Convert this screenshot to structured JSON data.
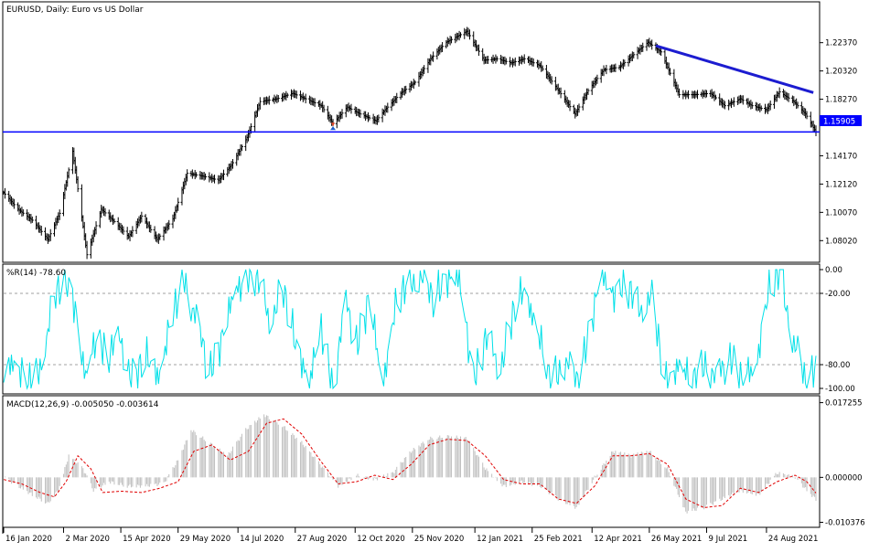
{
  "chart_data": [
    {
      "id": "price",
      "type": "ohlc",
      "title": "EURUSD, Daily:  Euro vs US Dollar",
      "y_ticks": [
        "1.22370",
        "1.20320",
        "1.18270",
        "1.14170",
        "1.12120",
        "1.10070",
        "1.08020"
      ],
      "ylim": [
        1.0645,
        1.2533
      ],
      "current_price": "1.15905",
      "horizontal_line_price": 1.159,
      "trendline": {
        "start": {
          "date": "2021-05-31",
          "price": 1.2215
        },
        "end": {
          "date": "2021-09-29",
          "price": 1.1875
        }
      },
      "series_close": [
        {
          "date": "2020-01-16",
          "close": 1.115
        },
        {
          "date": "2020-01-27",
          "close": 1.103
        },
        {
          "date": "2020-02-07",
          "close": 1.095
        },
        {
          "date": "2020-02-19",
          "close": 1.081
        },
        {
          "date": "2020-02-28",
          "close": 1.1
        },
        {
          "date": "2020-03-09",
          "close": 1.145
        },
        {
          "date": "2020-03-20",
          "close": 1.07
        },
        {
          "date": "2020-03-31",
          "close": 1.103
        },
        {
          "date": "2020-04-10",
          "close": 1.094
        },
        {
          "date": "2020-04-21",
          "close": 1.083
        },
        {
          "date": "2020-05-01",
          "close": 1.098
        },
        {
          "date": "2020-05-13",
          "close": 1.081
        },
        {
          "date": "2020-05-25",
          "close": 1.096
        },
        {
          "date": "2020-06-05",
          "close": 1.129
        },
        {
          "date": "2020-06-17",
          "close": 1.127
        },
        {
          "date": "2020-06-29",
          "close": 1.124
        },
        {
          "date": "2020-07-09",
          "close": 1.135
        },
        {
          "date": "2020-07-21",
          "close": 1.155
        },
        {
          "date": "2020-07-31",
          "close": 1.181
        },
        {
          "date": "2020-08-13",
          "close": 1.183
        },
        {
          "date": "2020-08-25",
          "close": 1.187
        },
        {
          "date": "2020-09-04",
          "close": 1.183
        },
        {
          "date": "2020-09-16",
          "close": 1.178
        },
        {
          "date": "2020-09-25",
          "close": 1.165
        },
        {
          "date": "2020-10-06",
          "close": 1.177
        },
        {
          "date": "2020-10-16",
          "close": 1.172
        },
        {
          "date": "2020-10-28",
          "close": 1.167
        },
        {
          "date": "2020-11-04",
          "close": 1.175
        },
        {
          "date": "2020-11-16",
          "close": 1.187
        },
        {
          "date": "2020-11-27",
          "close": 1.195
        },
        {
          "date": "2020-12-09",
          "close": 1.212
        },
        {
          "date": "2020-12-21",
          "close": 1.224
        },
        {
          "date": "2021-01-06",
          "close": 1.232
        },
        {
          "date": "2021-01-19",
          "close": 1.211
        },
        {
          "date": "2021-01-29",
          "close": 1.212
        },
        {
          "date": "2021-02-09",
          "close": 1.209
        },
        {
          "date": "2021-02-19",
          "close": 1.212
        },
        {
          "date": "2021-03-03",
          "close": 1.207
        },
        {
          "date": "2021-03-15",
          "close": 1.192
        },
        {
          "date": "2021-03-30",
          "close": 1.172
        },
        {
          "date": "2021-04-09",
          "close": 1.189
        },
        {
          "date": "2021-04-21",
          "close": 1.204
        },
        {
          "date": "2021-05-03",
          "close": 1.206
        },
        {
          "date": "2021-05-14",
          "close": 1.215
        },
        {
          "date": "2021-05-25",
          "close": 1.224
        },
        {
          "date": "2021-06-04",
          "close": 1.217
        },
        {
          "date": "2021-06-18",
          "close": 1.186
        },
        {
          "date": "2021-06-30",
          "close": 1.186
        },
        {
          "date": "2021-07-12",
          "close": 1.187
        },
        {
          "date": "2021-07-23",
          "close": 1.178
        },
        {
          "date": "2021-08-04",
          "close": 1.183
        },
        {
          "date": "2021-08-13",
          "close": 1.178
        },
        {
          "date": "2021-08-24",
          "close": 1.175
        },
        {
          "date": "2021-09-03",
          "close": 1.188
        },
        {
          "date": "2021-09-14",
          "close": 1.181
        },
        {
          "date": "2021-09-23",
          "close": 1.172
        },
        {
          "date": "2021-10-01",
          "close": 1.159
        }
      ]
    },
    {
      "id": "williams",
      "type": "line",
      "label": "%R(14) -78.60",
      "y_ticks": [
        "0.00",
        "-20.00",
        "-80.00",
        "-100.00"
      ],
      "ylim": [
        -100,
        0
      ],
      "levels": [
        -20,
        -80
      ],
      "color": "#00e0e8",
      "series": [
        {
          "date": "2020-01-16",
          "value": -95
        },
        {
          "date": "2020-01-24",
          "value": -72
        },
        {
          "date": "2020-02-03",
          "value": -98
        },
        {
          "date": "2020-02-11",
          "value": -90
        },
        {
          "date": "2020-02-21",
          "value": -40
        },
        {
          "date": "2020-03-02",
          "value": -2
        },
        {
          "date": "2020-03-11",
          "value": -30
        },
        {
          "date": "2020-03-19",
          "value": -95
        },
        {
          "date": "2020-03-27",
          "value": -55
        },
        {
          "date": "2020-04-06",
          "value": -70
        },
        {
          "date": "2020-04-15",
          "value": -60
        },
        {
          "date": "2020-04-24",
          "value": -92
        },
        {
          "date": "2020-05-05",
          "value": -75
        },
        {
          "date": "2020-05-14",
          "value": -88
        },
        {
          "date": "2020-05-25",
          "value": -40
        },
        {
          "date": "2020-06-03",
          "value": -5
        },
        {
          "date": "2020-06-12",
          "value": -45
        },
        {
          "date": "2020-06-22",
          "value": -85
        },
        {
          "date": "2020-07-01",
          "value": -60
        },
        {
          "date": "2020-07-10",
          "value": -25
        },
        {
          "date": "2020-07-20",
          "value": -3
        },
        {
          "date": "2020-07-29",
          "value": -8
        },
        {
          "date": "2020-08-07",
          "value": -40
        },
        {
          "date": "2020-08-18",
          "value": -20
        },
        {
          "date": "2020-08-27",
          "value": -60
        },
        {
          "date": "2020-09-07",
          "value": -95
        },
        {
          "date": "2020-09-16",
          "value": -50
        },
        {
          "date": "2020-09-25",
          "value": -98
        },
        {
          "date": "2020-10-05",
          "value": -30
        },
        {
          "date": "2020-10-14",
          "value": -60
        },
        {
          "date": "2020-10-23",
          "value": -25
        },
        {
          "date": "2020-11-02",
          "value": -98
        },
        {
          "date": "2020-11-11",
          "value": -35
        },
        {
          "date": "2020-11-20",
          "value": -15
        },
        {
          "date": "2020-12-01",
          "value": -3
        },
        {
          "date": "2020-12-10",
          "value": -25
        },
        {
          "date": "2020-12-21",
          "value": -6
        },
        {
          "date": "2020-12-31",
          "value": -10
        },
        {
          "date": "2021-01-11",
          "value": -90
        },
        {
          "date": "2021-01-20",
          "value": -60
        },
        {
          "date": "2021-02-01",
          "value": -80
        },
        {
          "date": "2021-02-10",
          "value": -40
        },
        {
          "date": "2021-02-19",
          "value": -15
        },
        {
          "date": "2021-03-02",
          "value": -55
        },
        {
          "date": "2021-03-11",
          "value": -98
        },
        {
          "date": "2021-03-22",
          "value": -75
        },
        {
          "date": "2021-03-31",
          "value": -96
        },
        {
          "date": "2021-04-09",
          "value": -55
        },
        {
          "date": "2021-04-19",
          "value": -5
        },
        {
          "date": "2021-04-28",
          "value": -20
        },
        {
          "date": "2021-05-07",
          "value": -10
        },
        {
          "date": "2021-05-18",
          "value": -35
        },
        {
          "date": "2021-05-27",
          "value": -20
        },
        {
          "date": "2021-06-07",
          "value": -95
        },
        {
          "date": "2021-06-17",
          "value": -80
        },
        {
          "date": "2021-06-28",
          "value": -95
        },
        {
          "date": "2021-07-07",
          "value": -78
        },
        {
          "date": "2021-07-16",
          "value": -95
        },
        {
          "date": "2021-07-27",
          "value": -70
        },
        {
          "date": "2021-08-05",
          "value": -95
        },
        {
          "date": "2021-08-16",
          "value": -80
        },
        {
          "date": "2021-08-25",
          "value": -20
        },
        {
          "date": "2021-09-03",
          "value": -2
        },
        {
          "date": "2021-09-14",
          "value": -60
        },
        {
          "date": "2021-09-23",
          "value": -97
        },
        {
          "date": "2021-10-01",
          "value": -78.6
        }
      ]
    },
    {
      "id": "macd",
      "type": "histogram+line",
      "label": "MACD(12,26,9) -0.005050 -0.003614",
      "y_ticks": [
        "0.017255",
        "0.000000",
        "-0.010376"
      ],
      "ylim": [
        -0.0109,
        0.0178
      ],
      "histogram_color": "#c0c0c0",
      "signal_color": "#e00000",
      "macd_main": [
        {
          "date": "2020-01-16",
          "value": 0.0
        },
        {
          "date": "2020-01-27",
          "value": -0.002
        },
        {
          "date": "2020-02-07",
          "value": -0.004
        },
        {
          "date": "2020-02-19",
          "value": -0.006
        },
        {
          "date": "2020-02-27",
          "value": -0.003
        },
        {
          "date": "2020-03-06",
          "value": 0.005
        },
        {
          "date": "2020-03-17",
          "value": 0.002
        },
        {
          "date": "2020-03-25",
          "value": -0.003
        },
        {
          "date": "2020-04-06",
          "value": -0.001
        },
        {
          "date": "2020-04-20",
          "value": -0.002
        },
        {
          "date": "2020-05-04",
          "value": -0.002
        },
        {
          "date": "2020-05-18",
          "value": -0.0015
        },
        {
          "date": "2020-05-29",
          "value": 0.004
        },
        {
          "date": "2020-06-08",
          "value": 0.011
        },
        {
          "date": "2020-06-22",
          "value": 0.008
        },
        {
          "date": "2020-07-06",
          "value": 0.005
        },
        {
          "date": "2020-07-20",
          "value": 0.011
        },
        {
          "date": "2020-08-03",
          "value": 0.0145
        },
        {
          "date": "2020-08-17",
          "value": 0.012
        },
        {
          "date": "2020-09-01",
          "value": 0.008
        },
        {
          "date": "2020-09-15",
          "value": 0.003
        },
        {
          "date": "2020-09-29",
          "value": -0.002
        },
        {
          "date": "2020-10-13",
          "value": 0.0005
        },
        {
          "date": "2020-10-27",
          "value": -0.0005
        },
        {
          "date": "2020-11-10",
          "value": 0.001
        },
        {
          "date": "2020-11-24",
          "value": 0.006
        },
        {
          "date": "2020-12-08",
          "value": 0.009
        },
        {
          "date": "2020-12-22",
          "value": 0.0095
        },
        {
          "date": "2021-01-06",
          "value": 0.009
        },
        {
          "date": "2021-01-20",
          "value": 0.002
        },
        {
          "date": "2021-02-03",
          "value": -0.002
        },
        {
          "date": "2021-02-17",
          "value": -0.001
        },
        {
          "date": "2021-03-03",
          "value": -0.002
        },
        {
          "date": "2021-03-17",
          "value": -0.005
        },
        {
          "date": "2021-03-31",
          "value": -0.007
        },
        {
          "date": "2021-04-14",
          "value": 0.0
        },
        {
          "date": "2021-04-28",
          "value": 0.006
        },
        {
          "date": "2021-05-12",
          "value": 0.005
        },
        {
          "date": "2021-05-26",
          "value": 0.006
        },
        {
          "date": "2021-06-09",
          "value": 0.002
        },
        {
          "date": "2021-06-23",
          "value": -0.008
        },
        {
          "date": "2021-07-07",
          "value": -0.007
        },
        {
          "date": "2021-07-21",
          "value": -0.005
        },
        {
          "date": "2021-08-04",
          "value": -0.003
        },
        {
          "date": "2021-08-18",
          "value": -0.004
        },
        {
          "date": "2021-09-01",
          "value": 0.001
        },
        {
          "date": "2021-09-15",
          "value": 0.0
        },
        {
          "date": "2021-09-24",
          "value": -0.003
        },
        {
          "date": "2021-10-01",
          "value": -0.00505
        }
      ],
      "signal": [
        {
          "date": "2020-01-16",
          "value": -0.0005
        },
        {
          "date": "2020-01-30",
          "value": -0.0015
        },
        {
          "date": "2020-02-13",
          "value": -0.0035
        },
        {
          "date": "2020-02-24",
          "value": -0.0045
        },
        {
          "date": "2020-03-04",
          "value": -0.001
        },
        {
          "date": "2020-03-13",
          "value": 0.005
        },
        {
          "date": "2020-03-23",
          "value": 0.002
        },
        {
          "date": "2020-04-01",
          "value": -0.0035
        },
        {
          "date": "2020-04-15",
          "value": -0.0032
        },
        {
          "date": "2020-05-01",
          "value": -0.0035
        },
        {
          "date": "2020-05-15",
          "value": -0.0025
        },
        {
          "date": "2020-05-29",
          "value": -0.001
        },
        {
          "date": "2020-06-10",
          "value": 0.006
        },
        {
          "date": "2020-06-24",
          "value": 0.0075
        },
        {
          "date": "2020-07-08",
          "value": 0.004
        },
        {
          "date": "2020-07-22",
          "value": 0.006
        },
        {
          "date": "2020-08-05",
          "value": 0.0125
        },
        {
          "date": "2020-08-18",
          "value": 0.0135
        },
        {
          "date": "2020-09-01",
          "value": 0.01
        },
        {
          "date": "2020-09-15",
          "value": 0.004
        },
        {
          "date": "2020-09-29",
          "value": -0.0015
        },
        {
          "date": "2020-10-13",
          "value": -0.001
        },
        {
          "date": "2020-10-27",
          "value": 0.0005
        },
        {
          "date": "2020-11-10",
          "value": -0.0005
        },
        {
          "date": "2020-11-24",
          "value": 0.003
        },
        {
          "date": "2020-12-08",
          "value": 0.0075
        },
        {
          "date": "2020-12-22",
          "value": 0.0088
        },
        {
          "date": "2021-01-06",
          "value": 0.0085
        },
        {
          "date": "2021-01-20",
          "value": 0.005
        },
        {
          "date": "2021-02-03",
          "value": -0.0005
        },
        {
          "date": "2021-02-17",
          "value": -0.0015
        },
        {
          "date": "2021-03-03",
          "value": -0.0015
        },
        {
          "date": "2021-03-17",
          "value": -0.005
        },
        {
          "date": "2021-03-31",
          "value": -0.006
        },
        {
          "date": "2021-04-14",
          "value": -0.002
        },
        {
          "date": "2021-04-28",
          "value": 0.005
        },
        {
          "date": "2021-05-12",
          "value": 0.005
        },
        {
          "date": "2021-05-26",
          "value": 0.0055
        },
        {
          "date": "2021-06-09",
          "value": 0.003
        },
        {
          "date": "2021-06-23",
          "value": -0.005
        },
        {
          "date": "2021-07-07",
          "value": -0.007
        },
        {
          "date": "2021-07-21",
          "value": -0.0065
        },
        {
          "date": "2021-08-04",
          "value": -0.0025
        },
        {
          "date": "2021-08-18",
          "value": -0.0035
        },
        {
          "date": "2021-09-01",
          "value": -0.001
        },
        {
          "date": "2021-09-15",
          "value": 0.0005
        },
        {
          "date": "2021-09-24",
          "value": -0.001
        },
        {
          "date": "2021-10-01",
          "value": -0.003614
        }
      ]
    }
  ],
  "x_axis": {
    "start_date": "2020-01-16",
    "end_date": "2021-10-01",
    "ticks": [
      {
        "date": "2020-01-16",
        "label": "16 Jan 2020"
      },
      {
        "date": "2020-03-02",
        "label": "2 Mar 2020"
      },
      {
        "date": "2020-04-15",
        "label": "15 Apr 2020"
      },
      {
        "date": "2020-05-29",
        "label": "29 May 2020"
      },
      {
        "date": "2020-07-14",
        "label": "14 Jul 2020"
      },
      {
        "date": "2020-08-27",
        "label": "27 Aug 2020"
      },
      {
        "date": "2020-10-12",
        "label": "12 Oct 2020"
      },
      {
        "date": "2020-11-25",
        "label": "25 Nov 2020"
      },
      {
        "date": "2021-01-12",
        "label": "12 Jan 2021"
      },
      {
        "date": "2021-02-25",
        "label": "25 Feb 2021"
      },
      {
        "date": "2021-04-12",
        "label": "12 Apr 2021"
      },
      {
        "date": "2021-05-26",
        "label": "26 May 2021"
      },
      {
        "date": "2021-07-09",
        "label": "9 Jul 2021"
      },
      {
        "date": "2021-08-24",
        "label": "24 Aug 2021"
      }
    ]
  },
  "colors": {
    "price_bars": "#000000",
    "hline": "#0000ff",
    "trendline": "#1c1cd0",
    "price_label_bg": "#0000ff",
    "grid": "#a0a0a0"
  },
  "markers": [
    {
      "date": "2020-09-25",
      "price": 1.165,
      "icon_name": "arrow-marker-icon"
    }
  ]
}
